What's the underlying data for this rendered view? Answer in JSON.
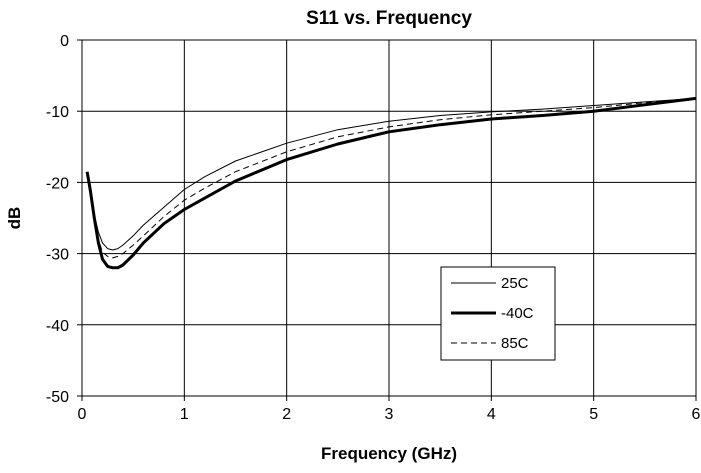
{
  "chart_data": {
    "type": "line",
    "title": "S11 vs. Frequency",
    "xlabel": "Frequency (GHz)",
    "ylabel": "dB",
    "xlim": [
      0,
      6
    ],
    "ylim": [
      -50,
      0
    ],
    "xticks": [
      "0",
      "1",
      "2",
      "3",
      "4",
      "5",
      "6"
    ],
    "yticks": [
      "0",
      "-10",
      "-20",
      "-30",
      "-40",
      "-50"
    ],
    "grid": true,
    "legend_position": "lower-right",
    "series": [
      {
        "name": "25C",
        "style": "thin-solid",
        "x": [
          0.05,
          0.08,
          0.12,
          0.16,
          0.2,
          0.25,
          0.3,
          0.35,
          0.4,
          0.5,
          0.6,
          0.8,
          1.0,
          1.2,
          1.5,
          2.0,
          2.5,
          3.0,
          3.5,
          4.0,
          4.5,
          5.0,
          5.5,
          6.0
        ],
        "y": [
          -19,
          -21.5,
          -24.5,
          -27,
          -28.5,
          -29.3,
          -29.5,
          -29.3,
          -28.8,
          -27.5,
          -26,
          -23.5,
          -21,
          -19.2,
          -17,
          -14.5,
          -12.6,
          -11.4,
          -10.6,
          -10.1,
          -9.7,
          -9.2,
          -8.7,
          -8.2
        ]
      },
      {
        "name": "-40C",
        "style": "thick-solid",
        "x": [
          0.05,
          0.08,
          0.12,
          0.16,
          0.2,
          0.25,
          0.3,
          0.35,
          0.4,
          0.5,
          0.6,
          0.8,
          1.0,
          1.2,
          1.5,
          2.0,
          2.5,
          3.0,
          3.5,
          4.0,
          4.5,
          5.0,
          5.5,
          6.0
        ],
        "y": [
          -18.5,
          -21,
          -25,
          -28.5,
          -30.8,
          -31.8,
          -32,
          -32,
          -31.6,
          -30.2,
          -28.5,
          -25.8,
          -23.8,
          -22.2,
          -19.8,
          -16.8,
          -14.6,
          -12.9,
          -11.9,
          -11.1,
          -10.6,
          -10,
          -9.1,
          -8.2
        ]
      },
      {
        "name": "85C",
        "style": "dashed",
        "x": [
          0.05,
          0.08,
          0.12,
          0.16,
          0.2,
          0.25,
          0.3,
          0.35,
          0.4,
          0.5,
          0.6,
          0.8,
          1.0,
          1.2,
          1.5,
          2.0,
          2.5,
          3.0,
          3.5,
          4.0,
          4.5,
          5.0,
          5.5,
          6.0
        ],
        "y": [
          -19,
          -21.8,
          -25.3,
          -28,
          -29.8,
          -30.4,
          -30.6,
          -30.4,
          -30,
          -28.8,
          -27.5,
          -24.8,
          -22.5,
          -20.8,
          -18.5,
          -15.7,
          -13.6,
          -12.2,
          -11.2,
          -10.5,
          -10,
          -9.5,
          -8.8,
          -8.2
        ]
      }
    ]
  }
}
